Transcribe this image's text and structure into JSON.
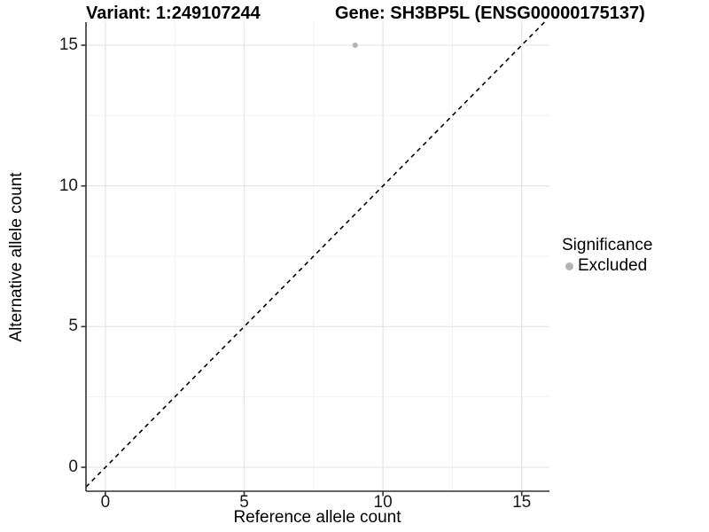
{
  "chart_data": {
    "type": "scatter",
    "title_left": "Variant: 1:249107244",
    "title_right": "Gene: SH3BP5L (ENSG00000175137)",
    "xlabel": "Reference allele count",
    "ylabel": "Alternative allele count",
    "xlim": [
      -0.7,
      16.0
    ],
    "ylim": [
      -0.85,
      15.82
    ],
    "x_ticks": [
      0,
      5,
      10,
      15
    ],
    "y_ticks": [
      0,
      5,
      10,
      15
    ],
    "minor_ticks": [
      2.5,
      7.5,
      12.5
    ],
    "grid": true,
    "reference_line": {
      "type": "identity",
      "equation": "y = x",
      "style": "dashed",
      "color": "#000000"
    },
    "series": [
      {
        "name": "Excluded",
        "color": "#b3b3b3",
        "points": [
          {
            "x": 9,
            "y": 15
          }
        ]
      }
    ],
    "legend": {
      "title": "Significance",
      "position": "right",
      "entries": [
        {
          "label": "Excluded",
          "color": "#b3b3b3"
        }
      ]
    },
    "colors": {
      "point": "#b3b3b3",
      "axis_line": "#333333",
      "tick_label": "#1a1a1a",
      "grid_major": "#e6e6e6",
      "grid_minor": "#f0f0f0",
      "background": "#ffffff"
    }
  }
}
